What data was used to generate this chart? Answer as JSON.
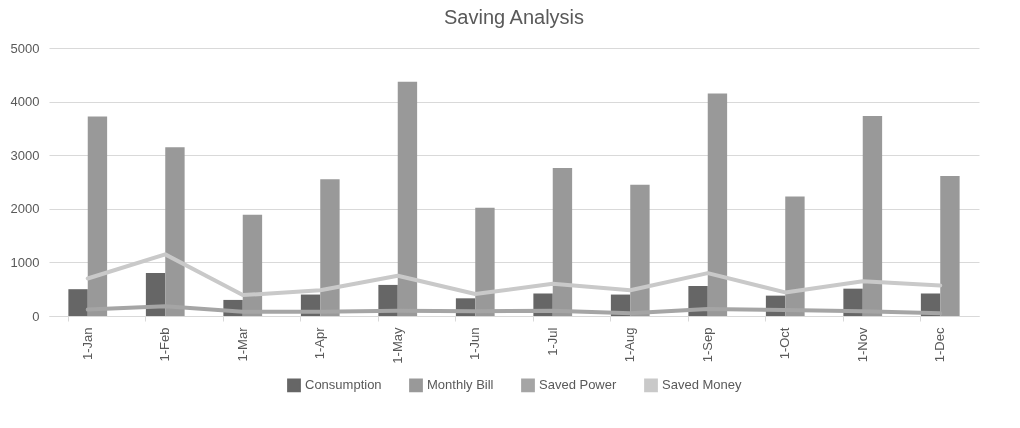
{
  "chart_data": {
    "type": "bar",
    "title": "Saving Analysis",
    "categories": [
      "1-Jan",
      "1-Feb",
      "1-Mar",
      "1-Apr",
      "1-May",
      "1-Jun",
      "1-Jul",
      "1-Aug",
      "1-Sep",
      "1-Oct",
      "1-Nov",
      "1-Dec"
    ],
    "series": [
      {
        "name": "Consumption",
        "color": "#666666",
        "values": [
          500,
          800,
          300,
          400,
          580,
          330,
          420,
          400,
          560,
          380,
          510,
          420
        ]
      },
      {
        "name": "Monthly Bill",
        "color": "#999999",
        "values": [
          3720,
          3150,
          1890,
          2550,
          4370,
          2020,
          2760,
          2450,
          4150,
          2230,
          3730,
          2610
        ]
      },
      {
        "name": "Saved Power",
        "type": "line",
        "color": "#a5a5a5",
        "values": [
          120,
          180,
          80,
          80,
          100,
          90,
          100,
          50,
          130,
          110,
          90,
          50
        ]
      },
      {
        "name": "Saved Money",
        "type": "line",
        "color": "#c9c9c9",
        "values": [
          700,
          1150,
          390,
          480,
          750,
          410,
          600,
          480,
          800,
          440,
          650,
          570
        ]
      }
    ],
    "ylim": [
      0,
      5000
    ],
    "yticks": [
      0,
      1000,
      2000,
      3000,
      4000,
      5000
    ],
    "grid": "y",
    "legend": "bottom"
  }
}
